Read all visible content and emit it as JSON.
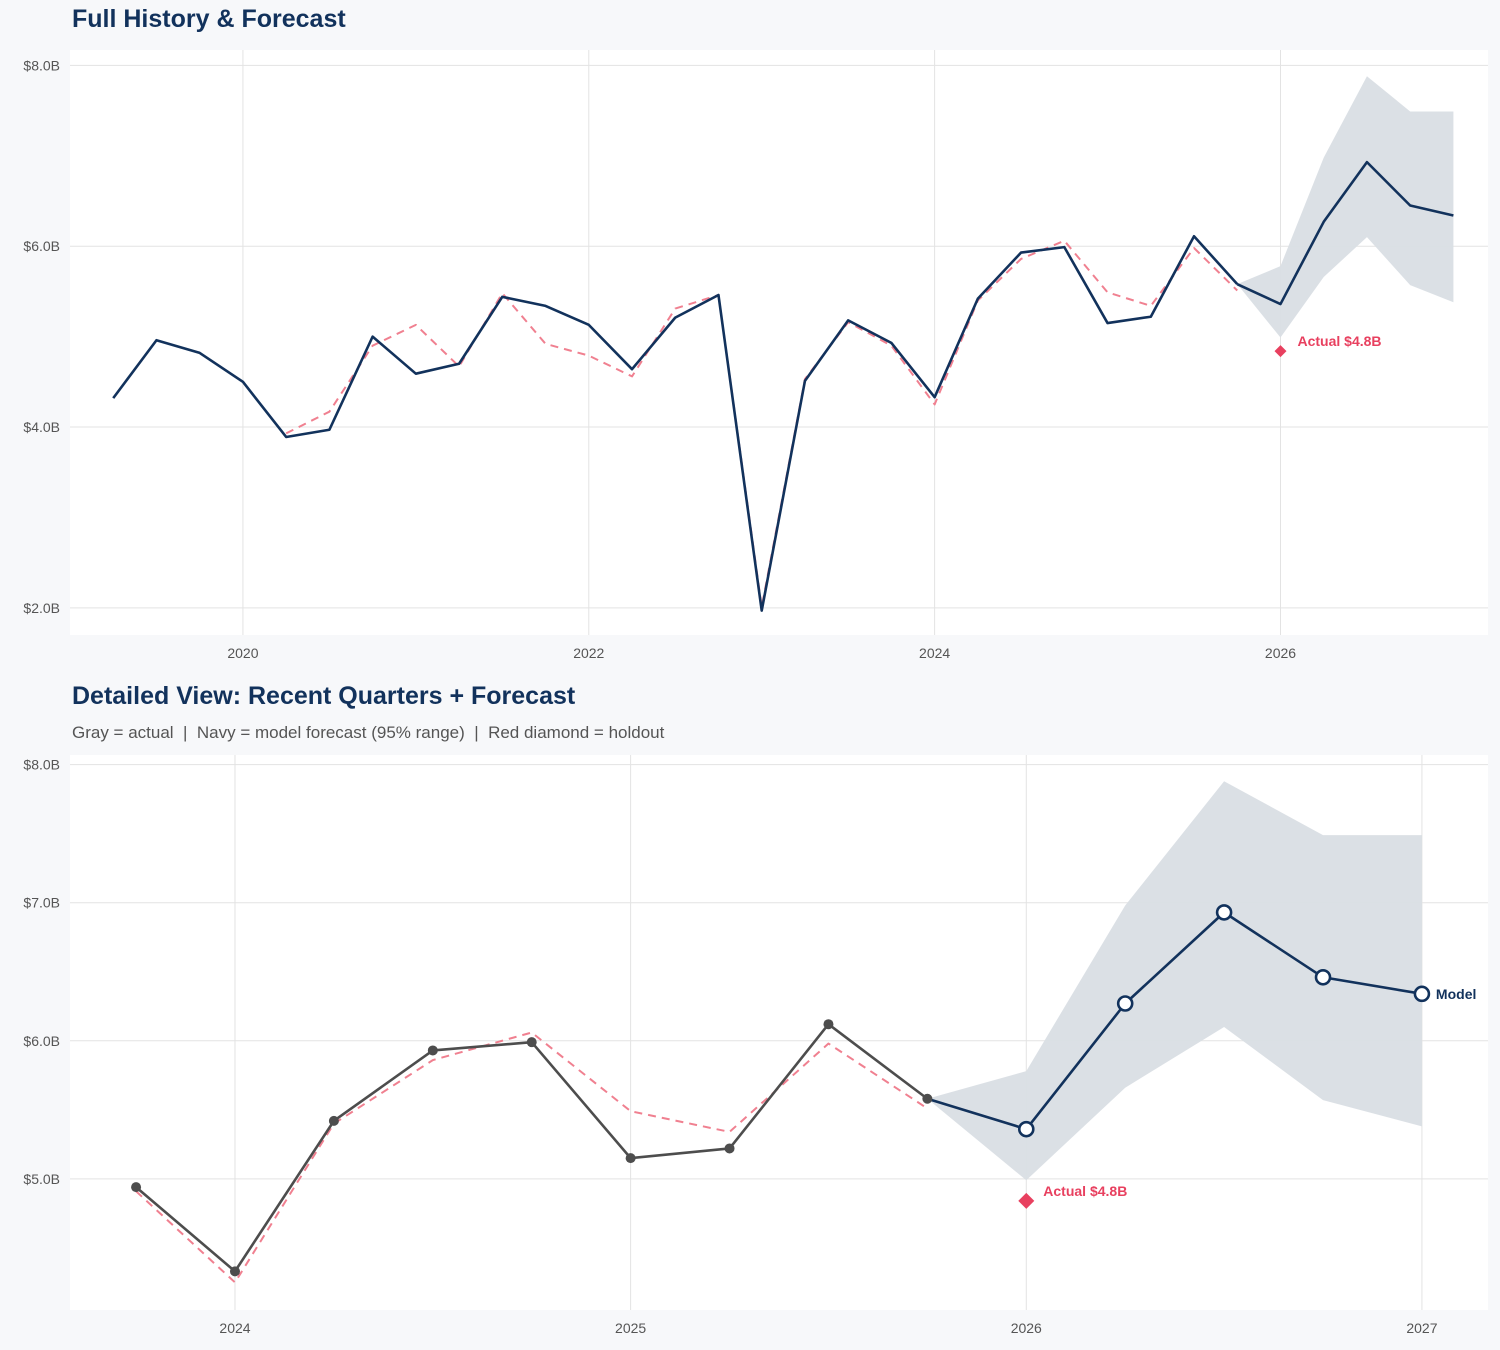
{
  "colors": {
    "navy": "#12325c",
    "gray": "#4d4d4d",
    "red": "#e8405f",
    "fitted": "#f08090",
    "band": "#d9dee4",
    "grid": "#e3e3e3"
  },
  "chart_data": [
    {
      "type": "line",
      "title": "Full History & Forecast",
      "subtitle": "",
      "xlim": [
        2019.0,
        2027.2
      ],
      "ylim": [
        1.7,
        8.17
      ],
      "xticks": [
        2020,
        2022,
        2024,
        2026
      ],
      "xtick_labels": [
        "2020",
        "2022",
        "2024",
        "2026"
      ],
      "yticks": [
        2,
        4,
        6,
        8
      ],
      "ytick_labels": [
        "$2.0B",
        "$4.0B",
        "$6.0B",
        "$8.0B"
      ],
      "grid": true,
      "actual": {
        "x": [
          2019.25,
          2019.5,
          2019.75,
          2020,
          2020.25,
          2020.5,
          2020.75,
          2021,
          2021.25,
          2021.5,
          2021.75,
          2022,
          2022.25,
          2022.5,
          2022.75,
          2023,
          2023.25,
          2023.5,
          2023.75,
          2024,
          2024.25,
          2024.5,
          2024.75,
          2025,
          2025.25,
          2025.5,
          2025.75
        ],
        "y": [
          4.32,
          4.96,
          4.82,
          4.5,
          3.89,
          3.97,
          5.0,
          4.59,
          4.7,
          5.44,
          5.34,
          5.13,
          4.64,
          5.21,
          5.46,
          1.97,
          4.51,
          5.18,
          4.93,
          4.33,
          5.42,
          5.93,
          5.99,
          5.15,
          5.22,
          6.11,
          5.58
        ]
      },
      "fitted": {
        "x": [
          2020.25,
          2020.5,
          2020.75,
          2021,
          2021.25,
          2021.5,
          2021.75,
          2022,
          2022.25,
          2022.5,
          2022.75,
          2023,
          2023.25,
          2023.5,
          2023.75,
          2024,
          2024.25,
          2024.5,
          2024.75,
          2025,
          2025.25,
          2025.5,
          2025.75
        ],
        "y": [
          3.93,
          4.17,
          4.9,
          5.13,
          4.67,
          5.48,
          4.92,
          4.79,
          4.56,
          5.31,
          5.46,
          2.01,
          4.53,
          5.16,
          4.9,
          4.25,
          5.4,
          5.86,
          6.06,
          5.49,
          5.34,
          5.98,
          5.51
        ]
      },
      "forecast": {
        "x": [
          2025.75,
          2026,
          2026.25,
          2026.5,
          2026.75,
          2027
        ],
        "y": [
          5.58,
          5.36,
          6.27,
          6.93,
          6.45,
          6.34
        ]
      },
      "band": {
        "x": [
          2025.75,
          2026,
          2026.25,
          2026.5,
          2026.75,
          2027
        ],
        "lower": [
          5.58,
          4.99,
          5.66,
          6.1,
          5.57,
          5.38
        ],
        "upper": [
          5.58,
          5.78,
          6.98,
          7.88,
          7.49,
          7.49
        ]
      },
      "holdout": {
        "x": 2026,
        "y": 4.84,
        "label": "Actual $4.8B"
      },
      "actual_color": "#12325c",
      "markers": false
    },
    {
      "type": "line",
      "title": "Detailed View: Recent Quarters + Forecast",
      "subtitle": "Gray = actual  |  Navy = model forecast (95% range)  |  Red diamond = holdout",
      "xlim": [
        2023.583,
        2027.167
      ],
      "ylim": [
        4.05,
        8.07
      ],
      "xticks": [
        2024,
        2025,
        2026,
        2027
      ],
      "xtick_labels": [
        "2024",
        "2025",
        "2026",
        "2027"
      ],
      "yticks": [
        5,
        6,
        7,
        8
      ],
      "ytick_labels": [
        "$5.0B",
        "$6.0B",
        "$7.0B",
        "$8.0B"
      ],
      "grid": true,
      "actual": {
        "x": [
          2023.75,
          2024,
          2024.25,
          2024.5,
          2024.75,
          2025,
          2025.25,
          2025.5,
          2025.75
        ],
        "y": [
          4.94,
          4.33,
          5.42,
          5.93,
          5.99,
          5.15,
          5.22,
          6.12,
          5.58
        ]
      },
      "fitted": {
        "x": [
          2023.75,
          2024,
          2024.25,
          2024.5,
          2024.75,
          2025,
          2025.25,
          2025.5,
          2025.75
        ],
        "y": [
          4.91,
          4.25,
          5.4,
          5.86,
          6.06,
          5.49,
          5.34,
          5.98,
          5.51
        ]
      },
      "forecast": {
        "x": [
          2025.75,
          2026,
          2026.25,
          2026.5,
          2026.75,
          2027
        ],
        "y": [
          5.58,
          5.36,
          6.27,
          6.93,
          6.46,
          6.34
        ],
        "label": "Model"
      },
      "band": {
        "x": [
          2025.75,
          2026,
          2026.25,
          2026.5,
          2026.75,
          2027
        ],
        "lower": [
          5.58,
          4.99,
          5.66,
          6.1,
          5.57,
          5.38
        ],
        "upper": [
          5.58,
          5.78,
          6.98,
          7.88,
          7.49,
          7.49
        ]
      },
      "holdout": {
        "x": 2026,
        "y": 4.84,
        "label": "Actual $4.8B"
      },
      "actual_color": "#4d4d4d",
      "markers": true
    }
  ]
}
